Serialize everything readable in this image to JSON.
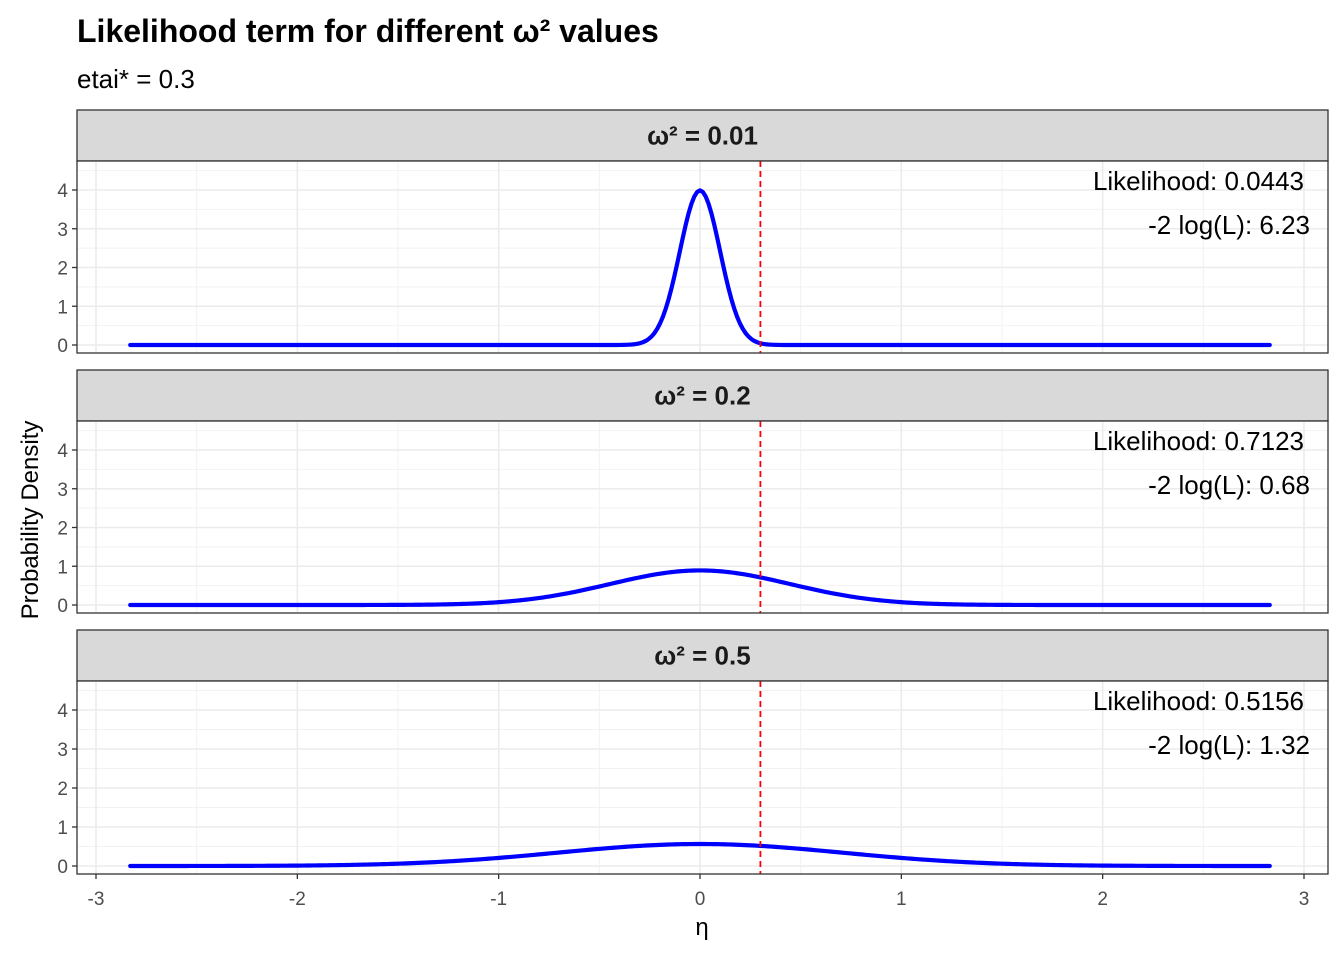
{
  "chart_data": {
    "type": "line",
    "title": "Likelihood term for different ω² values",
    "subtitle": "etai* = 0.3",
    "xlabel": "η",
    "ylabel": "Probability Density",
    "xlim": [
      -3.0,
      3.0
    ],
    "ylim": [
      0,
      4.5
    ],
    "x_ticks": [
      "-3",
      "-2",
      "-1",
      "0",
      "1",
      "2",
      "3"
    ],
    "y_ticks": [
      "0",
      "1",
      "2",
      "3",
      "4"
    ],
    "reference_line": {
      "x": 0.3,
      "color": "#ff0000",
      "style": "dashed"
    },
    "line_color": "#0000ff",
    "grid": true,
    "facets": [
      {
        "label": "ω² = 0.01",
        "omega2": 0.01,
        "likelihood_text": "Likelihood: 0.0443",
        "neg2loglik_text": "-2 log(L): 6.23",
        "x_range": [
          -2.83,
          2.83
        ],
        "peak_density": 3.99
      },
      {
        "label": "ω² = 0.2",
        "omega2": 0.2,
        "likelihood_text": "Likelihood: 0.7123",
        "neg2loglik_text": "-2 log(L): 0.68",
        "x_range": [
          -2.83,
          2.83
        ],
        "peak_density": 0.89
      },
      {
        "label": "ω² = 0.5",
        "omega2": 0.5,
        "likelihood_text": "Likelihood: 0.5156",
        "neg2loglik_text": "-2 log(L): 1.32",
        "x_range": [
          -2.83,
          2.83
        ],
        "peak_density": 0.56
      }
    ]
  }
}
